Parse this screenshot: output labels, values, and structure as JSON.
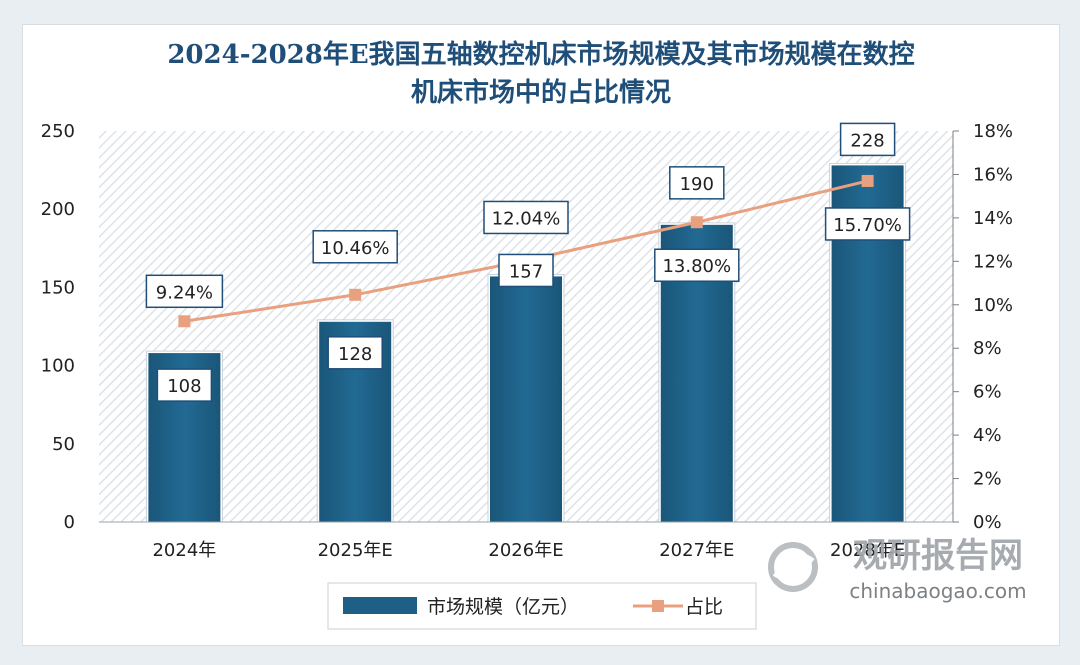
{
  "chart_data": {
    "type": "bar",
    "title_line1": "2024-2028年E我国五轴数控机床市场规模及其市场规模在数控",
    "title_line2": "机床市场中的占比情况",
    "categories": [
      "2024年",
      "2025年E",
      "2026年E",
      "2027年E",
      "2028年E"
    ],
    "series": [
      {
        "name": "市场规模（亿元）",
        "kind": "bar",
        "axis": "left",
        "values": [
          108,
          128,
          157,
          190,
          228
        ],
        "labels": [
          "108",
          "128",
          "157",
          "190",
          "228"
        ],
        "color": "#1d5f85"
      },
      {
        "name": "占比",
        "kind": "line",
        "axis": "right",
        "values": [
          9.24,
          10.46,
          12.04,
          13.8,
          15.7
        ],
        "labels": [
          "9.24%",
          "10.46%",
          "12.04%",
          "13.80%",
          "15.70%"
        ],
        "color": "#e8a07f"
      }
    ],
    "y_left": {
      "min": 0,
      "max": 250,
      "ticks": [
        "0",
        "50",
        "100",
        "150",
        "200",
        "250"
      ]
    },
    "y_right": {
      "min": 0,
      "max": 18,
      "ticks": [
        "0%",
        "2%",
        "4%",
        "6%",
        "8%",
        "10%",
        "12%",
        "14%",
        "16%",
        "18%"
      ]
    },
    "legend_position": "bottom"
  },
  "watermark": {
    "name": "观研报告网",
    "domain": "chinabaogao.com"
  },
  "colors": {
    "title": "#1f4e79",
    "bar": "#1d5f85",
    "line": "#e8a07f",
    "hatch": "#dde3e9"
  }
}
